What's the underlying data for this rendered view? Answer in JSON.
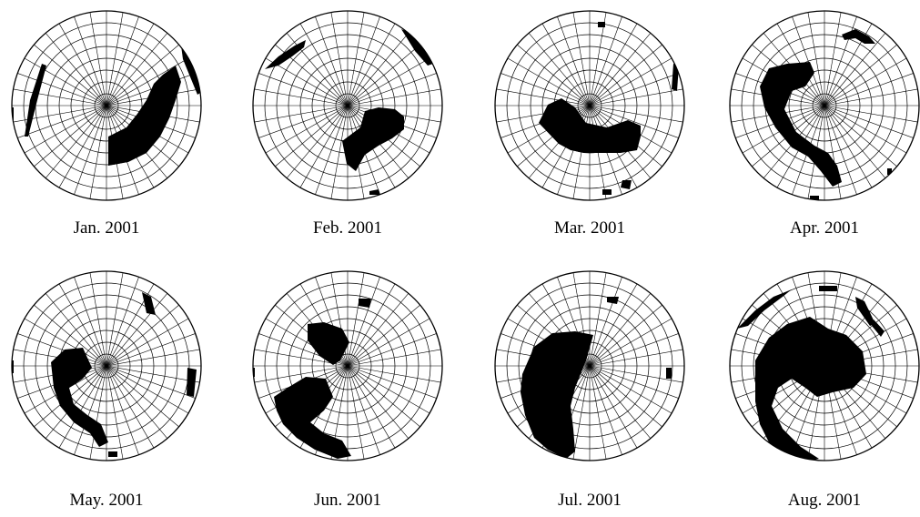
{
  "panels": [
    {
      "caption": "Jan. 2001",
      "map_icon": "polar-stereographic-map"
    },
    {
      "caption": "Feb. 2001",
      "map_icon": "polar-stereographic-map"
    },
    {
      "caption": "Mar. 2001",
      "map_icon": "polar-stereographic-map"
    },
    {
      "caption": "Apr. 2001",
      "map_icon": "polar-stereographic-map"
    },
    {
      "caption": "May. 2001",
      "map_icon": "polar-stereographic-map"
    },
    {
      "caption": "Jun. 2001",
      "map_icon": "polar-stereographic-map"
    },
    {
      "caption": "Jul. 2001",
      "map_icon": "polar-stereographic-map"
    },
    {
      "caption": "Aug. 2001",
      "map_icon": "polar-stereographic-map"
    }
  ],
  "colors": {
    "grid": "#000000",
    "region_fill": "#000000",
    "background": "#ffffff"
  }
}
